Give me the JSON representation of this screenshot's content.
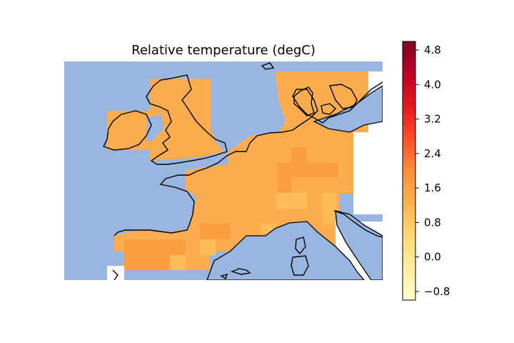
{
  "title": "Relative temperature (degC)",
  "colormap": "YlOrRd",
  "colors": {
    "ocean": "#98b6e0",
    "field_main": "#fdad4f",
    "field_warm": "#fb9e42",
    "field_light": "#febc5a",
    "coastline": "#000000"
  },
  "colorbar": {
    "vmin": -1.0,
    "vmax": 5.0,
    "ticks": [
      "−0.8",
      "0.0",
      "0.8",
      "1.6",
      "2.4",
      "3.2",
      "4.0",
      "4.8"
    ],
    "tick_values": [
      -0.8,
      0.0,
      0.8,
      1.6,
      2.4,
      3.2,
      4.0,
      4.8
    ],
    "stops": [
      "#ffffcc",
      "#ffeda0",
      "#fed976",
      "#feb24c",
      "#fd8d3c",
      "#fc4e2a",
      "#e31a1c",
      "#bd0026",
      "#800026"
    ]
  },
  "map": {
    "region": "Western Europe (British Isles, France, Benelux, Germany, Denmark, Iberian north, Alps)",
    "field_values_degC": {
      "typical": 1.4,
      "warmest_patches": 1.7,
      "coolest_patches": 1.1
    }
  }
}
